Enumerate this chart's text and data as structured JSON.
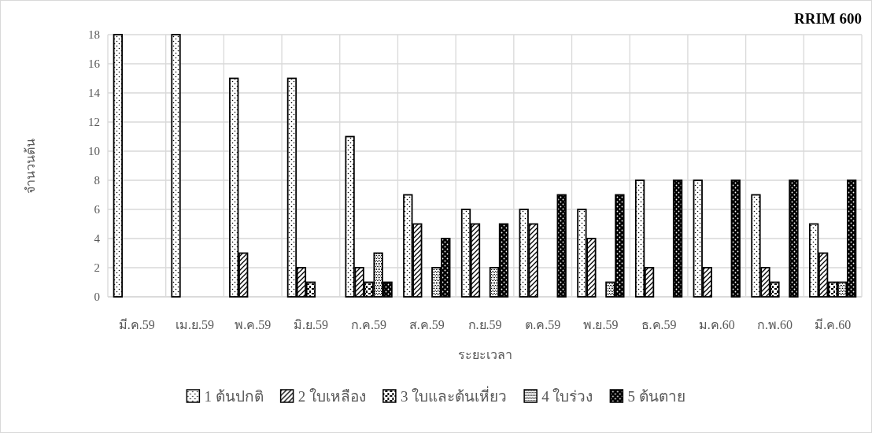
{
  "chart_data": {
    "type": "bar",
    "title": "RRIM 600",
    "xlabel": "ระยะเวลา",
    "ylabel": "จำนวนต้น",
    "categories": [
      "มี.ค.59",
      "เม.ย.59",
      "พ.ค.59",
      "มิ.ย.59",
      "ก.ค.59",
      "ส.ค.59",
      "ก.ย.59",
      "ต.ค.59",
      "พ.ย.59",
      "ธ.ค.59",
      "ม.ค.60",
      "ก.พ.60",
      "มี.ค.60"
    ],
    "series": [
      {
        "name": "1 ต้นปกติ",
        "color": "#000000",
        "values": [
          18,
          18,
          15,
          15,
          11,
          7,
          6,
          6,
          6,
          8,
          8,
          7,
          5
        ]
      },
      {
        "name": "2 ใบเหลือง",
        "color": "#000000",
        "values": [
          0,
          0,
          3,
          2,
          2,
          5,
          5,
          5,
          4,
          2,
          2,
          2,
          3
        ]
      },
      {
        "name": "3 ใบและต้นเหี่ยว",
        "color": "#000000",
        "values": [
          0,
          0,
          0,
          1,
          1,
          0,
          0,
          0,
          0,
          0,
          0,
          1,
          1
        ]
      },
      {
        "name": "4 ใบร่วง",
        "color": "#000000",
        "values": [
          0,
          0,
          0,
          0,
          3,
          2,
          2,
          0,
          1,
          0,
          0,
          0,
          1
        ]
      },
      {
        "name": "5 ต้นตาย",
        "color": "#000000",
        "values": [
          0,
          0,
          0,
          0,
          1,
          4,
          5,
          7,
          7,
          8,
          8,
          8,
          8
        ]
      }
    ],
    "ylim": [
      0,
      18
    ],
    "yticks": [
      0,
      2,
      4,
      6,
      8,
      10,
      12,
      14,
      16,
      18
    ],
    "grid": true,
    "legend": "bottom"
  }
}
